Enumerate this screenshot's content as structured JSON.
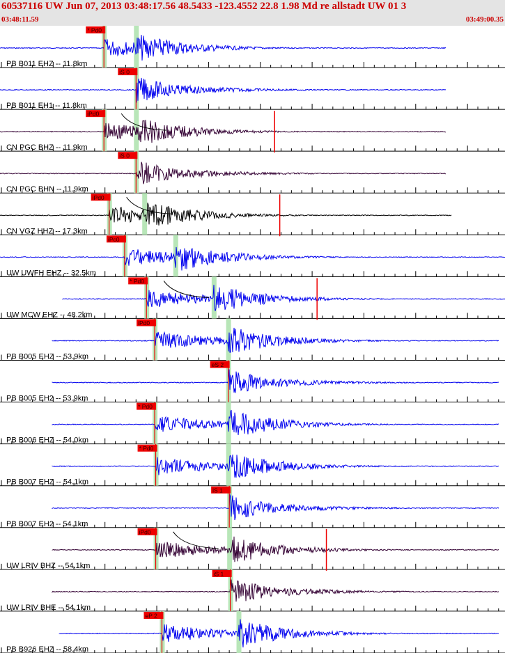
{
  "header": {
    "title": "60537116 UW Jun 07, 2013 03:48:17.56    48.5433 -123.4552 22.8 1.98 Md re allstadt UW 01    3",
    "start_time": "03:48:11.59",
    "end_time": "03:49:00.35"
  },
  "colors": {
    "header_bg": "#e4e4e4",
    "header_text": "#cc0000",
    "trace_blue": "#0000ee",
    "trace_dark": "#330033",
    "trace_black": "#000000",
    "pick_red": "#ee0000",
    "window_green": "#b8e6b8",
    "axis": "#000000"
  },
  "traces": [
    {
      "label": "PB B011 EHZ -- 11.8km",
      "pick": "* Pd0",
      "color": "blue",
      "pick_time": 9.9,
      "s_time": 13.0,
      "tail": false
    },
    {
      "label": "PB B011 EH1 -- 11.8km",
      "pick": "iS 0",
      "color": "blue",
      "pick_time": 13.0,
      "s_time": null,
      "tail": false
    },
    {
      "label": "CN PGC BHZ -- 11.9km",
      "pick": "iPd0",
      "color": "dark",
      "pick_time": 9.9,
      "s_time": 13.0,
      "tail": true
    },
    {
      "label": "CN PGC BHN -- 11.9km",
      "pick": "iS 0",
      "color": "dark",
      "pick_time": 13.0,
      "s_time": null,
      "tail": false
    },
    {
      "label": "CN VGZ HHZ -- 17.3km",
      "pick": "iPd0",
      "color": "black",
      "pick_time": 10.4,
      "s_time": 13.8,
      "tail": true
    },
    {
      "label": "UW UWFH EHZ -- 32.5km",
      "pick": "iPc0",
      "color": "blue",
      "pick_time": 11.9,
      "s_time": 16.8,
      "tail": false
    },
    {
      "label": "UW MCW EHZ -- 48.2km",
      "pick": "* Pd0",
      "color": "blue",
      "pick_time": 14.0,
      "s_time": 20.5,
      "tail": true
    },
    {
      "label": "PB B005 EHZ -- 53.9km",
      "pick": "iPd0",
      "color": "blue",
      "pick_time": 14.8,
      "s_time": 21.9,
      "tail": false
    },
    {
      "label": "PB B005 EH2 -- 53.9km",
      "pick": "eS 2",
      "color": "blue",
      "pick_time": 21.9,
      "s_time": null,
      "tail": false
    },
    {
      "label": "PB B006 EHZ -- 54.0km",
      "pick": "* Pd0",
      "color": "blue",
      "pick_time": 14.8,
      "s_time": 21.9,
      "tail": false
    },
    {
      "label": "PB B007 EHZ -- 54.1km",
      "pick": "* Pd0",
      "color": "blue",
      "pick_time": 14.9,
      "s_time": 21.9,
      "tail": false
    },
    {
      "label": "PB B007 EH2 -- 54.1km",
      "pick": "iS 1",
      "color": "blue",
      "pick_time": 22.0,
      "s_time": null,
      "tail": false
    },
    {
      "label": "UW LRIV BHZ -- 54.1km",
      "pick": "iPd0",
      "color": "dark",
      "pick_time": 14.9,
      "s_time": 22.0,
      "tail": true
    },
    {
      "label": "UW LRIV BHE -- 54.1km",
      "pick": "iS 1",
      "color": "dark",
      "pick_time": 22.1,
      "s_time": null,
      "tail": false
    },
    {
      "label": "PB B926 EHZ -- 58.4km",
      "pick": "eP 2",
      "color": "blue",
      "pick_time": 15.5,
      "s_time": 22.9,
      "tail": false
    }
  ]
}
